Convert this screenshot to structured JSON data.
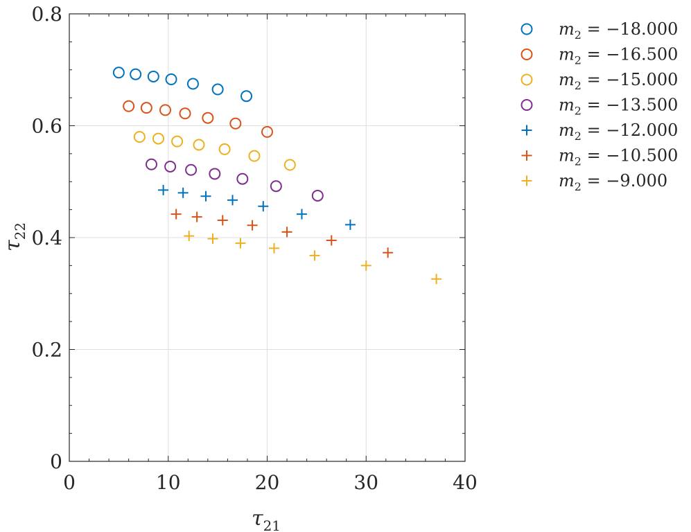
{
  "chart_data": {
    "type": "scatter",
    "title": "",
    "xlabel": "τ21",
    "ylabel": "τ22",
    "xlim": [
      0,
      40
    ],
    "ylim": [
      0,
      0.8
    ],
    "xticks": [
      0,
      10,
      20,
      30,
      40
    ],
    "yticks": [
      0,
      0.2,
      0.4,
      0.6,
      0.8
    ],
    "xtick_labels": [
      "0",
      "10",
      "20",
      "30",
      "40"
    ],
    "ytick_labels": [
      "0",
      "0.2",
      "0.4",
      "0.6",
      "0.8"
    ],
    "grid": true,
    "legend_position": "outside-right",
    "series": [
      {
        "name": "m2 = −18.000",
        "label_value": "−18.000",
        "marker": "circle",
        "color": "#0072BD",
        "x": [
          5.0,
          6.7,
          8.5,
          10.3,
          12.5,
          15.0,
          17.9
        ],
        "y": [
          0.695,
          0.692,
          0.688,
          0.683,
          0.675,
          0.665,
          0.653
        ]
      },
      {
        "name": "m2 = −16.500",
        "label_value": "−16.500",
        "marker": "circle",
        "color": "#D95319",
        "x": [
          6.0,
          7.8,
          9.7,
          11.7,
          14.0,
          16.8,
          20.0
        ],
        "y": [
          0.635,
          0.632,
          0.628,
          0.622,
          0.614,
          0.604,
          0.589
        ]
      },
      {
        "name": "m2 = −15.000",
        "label_value": "−15.000",
        "marker": "circle",
        "color": "#EDB120",
        "x": [
          7.1,
          9.0,
          10.9,
          13.1,
          15.7,
          18.7,
          22.3
        ],
        "y": [
          0.58,
          0.577,
          0.572,
          0.566,
          0.558,
          0.546,
          0.53
        ]
      },
      {
        "name": "m2 = −13.500",
        "label_value": "−13.500",
        "marker": "circle",
        "color": "#7E2F8E",
        "x": [
          8.3,
          10.2,
          12.3,
          14.7,
          17.5,
          20.9,
          25.1
        ],
        "y": [
          0.531,
          0.527,
          0.521,
          0.514,
          0.505,
          0.492,
          0.475
        ]
      },
      {
        "name": "m2 = −12.000",
        "label_value": "−12.000",
        "marker": "plus",
        "color": "#0072BD",
        "x": [
          9.5,
          11.5,
          13.8,
          16.5,
          19.6,
          23.5,
          28.4
        ],
        "y": [
          0.485,
          0.48,
          0.474,
          0.467,
          0.456,
          0.442,
          0.423
        ]
      },
      {
        "name": "m2 = −10.500",
        "label_value": "−10.500",
        "marker": "plus",
        "color": "#D95319",
        "x": [
          10.8,
          12.9,
          15.5,
          18.5,
          22.0,
          26.5,
          32.2
        ],
        "y": [
          0.442,
          0.437,
          0.431,
          0.422,
          0.41,
          0.395,
          0.373
        ]
      },
      {
        "name": "m2 = −9.000",
        "label_value": "−9.000",
        "marker": "plus",
        "color": "#EDB120",
        "x": [
          12.1,
          14.5,
          17.3,
          20.7,
          24.8,
          30.0,
          37.1
        ],
        "y": [
          0.403,
          0.398,
          0.39,
          0.381,
          0.368,
          0.35,
          0.326
        ]
      }
    ]
  }
}
